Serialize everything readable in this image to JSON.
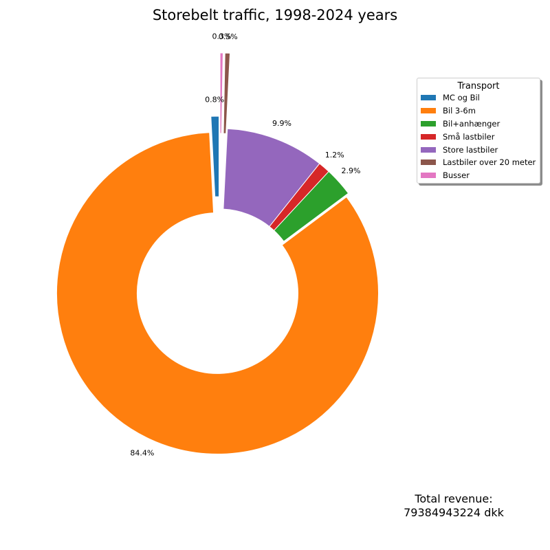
{
  "chart_data": {
    "type": "pie",
    "style": "donut",
    "title": "Storebelt traffic, 1998-2024 years",
    "legend": {
      "title": "Transport",
      "placement": "top-right"
    },
    "slices": [
      {
        "label": "MC og Bil",
        "percent_label": "0.8%",
        "value": 0.8,
        "color": "#1f77b4",
        "exploded": true
      },
      {
        "label": "Bil 3-6m",
        "percent_label": "84.4%",
        "value": 84.4,
        "color": "#ff7f0e",
        "exploded": true
      },
      {
        "label": "Bil+anhænger",
        "percent_label": "2.9%",
        "value": 2.9,
        "color": "#2ca02c",
        "exploded": false
      },
      {
        "label": "Små lastbiler",
        "percent_label": "1.2%",
        "value": 1.2,
        "color": "#d62728",
        "exploded": false
      },
      {
        "label": "Store lastbiler",
        "percent_label": "9.9%",
        "value": 9.9,
        "color": "#9467bd",
        "exploded": false
      },
      {
        "label": "Lastbiler over 20 meter",
        "percent_label": "0.5%",
        "value": 0.5,
        "color": "#8c564b",
        "exploded": true
      },
      {
        "label": "Busser",
        "percent_label": "0.3%",
        "value": 0.3,
        "color": "#e377c2",
        "exploded": true
      }
    ]
  },
  "revenue": {
    "label": "Total revenue:",
    "value": "79384943224 dkk"
  }
}
